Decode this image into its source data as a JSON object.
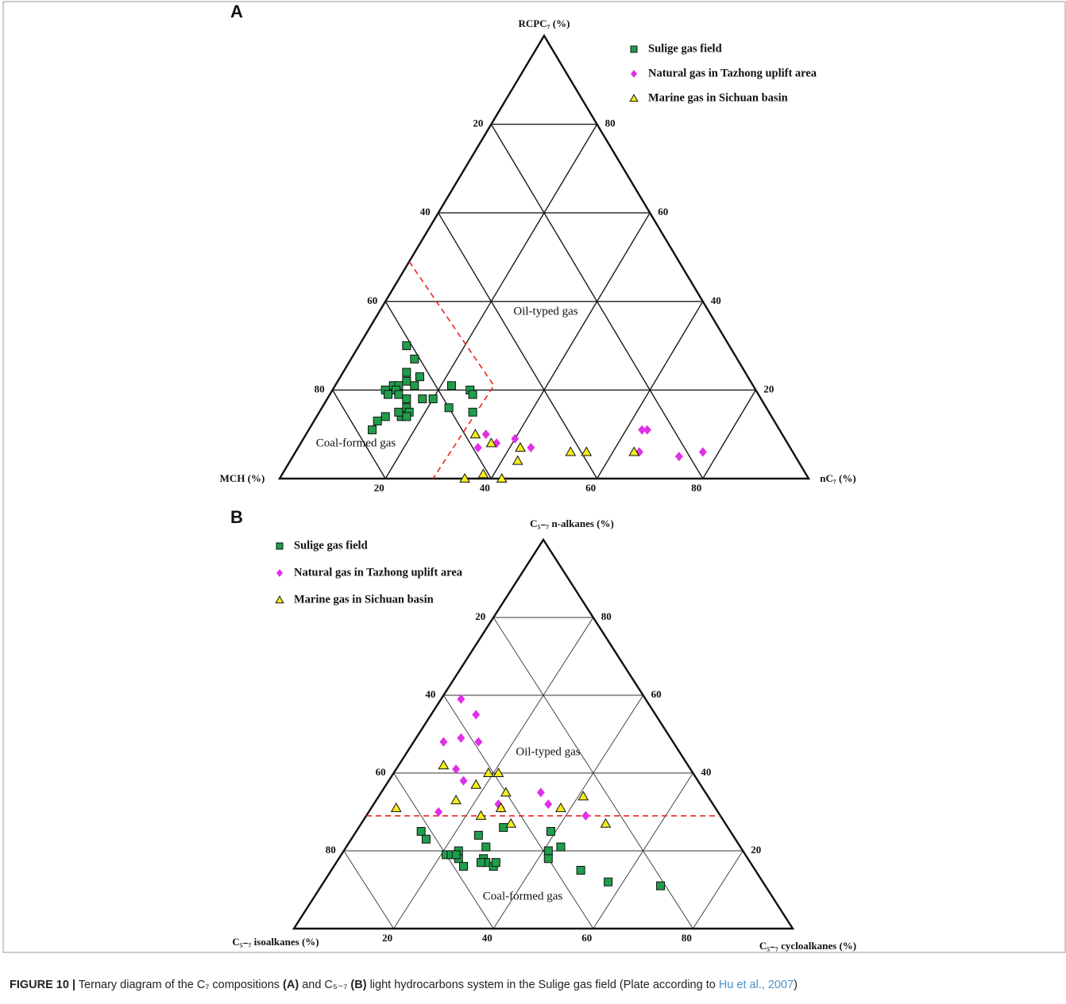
{
  "chart_data": [
    {
      "type": "ternary",
      "panel": "A",
      "lim": [
        0,
        100
      ],
      "components": [
        {
          "name": "MCH (%)",
          "ticks": [
            20,
            40,
            60,
            80
          ]
        },
        {
          "name": "RCPC₇ (%)",
          "ticks": [
            20,
            40,
            60,
            80
          ]
        },
        {
          "name": "nC₇ (%)",
          "ticks": [
            20,
            40,
            60,
            80
          ]
        }
      ],
      "series": [
        {
          "name": "Sulige  gas field",
          "color": "#1f9e4b",
          "marker": "square",
          "values": [
            [
              61,
              30,
              9
            ],
            [
              61,
              27,
              12
            ],
            [
              64,
              24,
              12
            ],
            [
              62,
              23,
              15
            ],
            [
              68,
              21,
              11
            ],
            [
              65,
              22,
              13
            ],
            [
              64,
              21,
              15
            ],
            [
              67,
              21,
              12
            ],
            [
              70,
              20,
              10
            ],
            [
              68,
              20,
              12
            ],
            [
              70,
              19,
              11
            ],
            [
              68,
              19,
              13
            ],
            [
              67,
              18,
              15
            ],
            [
              64,
              18,
              18
            ],
            [
              62,
              18,
              20
            ],
            [
              57,
              21,
              22
            ],
            [
              54,
              20,
              26
            ],
            [
              54,
              19,
              27
            ],
            [
              60,
              16,
              24
            ],
            [
              56,
              15,
              29
            ],
            [
              68,
              16,
              16
            ],
            [
              68,
              15,
              17
            ],
            [
              70,
              14,
              16
            ],
            [
              69,
              14,
              17
            ],
            [
              73,
              14,
              13
            ],
            [
              75,
              13,
              12
            ],
            [
              77,
              11,
              12
            ],
            [
              70,
              15,
              15
            ]
          ]
        },
        {
          "name": "Natural gas in Tazhong  uplift area",
          "color": "#e030e8",
          "marker": "diamond",
          "values": [
            [
              56,
              10,
              34
            ],
            [
              59,
              7,
              34
            ],
            [
              55,
              8,
              37
            ],
            [
              51,
              9,
              40
            ],
            [
              49,
              7,
              44
            ],
            [
              26,
              11,
              63
            ],
            [
              25,
              11,
              64
            ],
            [
              29,
              6,
              65
            ],
            [
              22,
              5,
              73
            ],
            [
              17,
              6,
              77
            ]
          ]
        },
        {
          "name": "Marine gas in Sichuan basin",
          "color": "#f2ee1c",
          "marker": "triangle",
          "values": [
            [
              58,
              10,
              32
            ],
            [
              56,
              8,
              36
            ],
            [
              51,
              7,
              42
            ],
            [
              53,
              4,
              43
            ],
            [
              42,
              6,
              52
            ],
            [
              39,
              6,
              55
            ],
            [
              30,
              6,
              64
            ],
            [
              65,
              0,
              35
            ],
            [
              61,
              1,
              38
            ],
            [
              58,
              0,
              42
            ]
          ]
        }
      ],
      "boundary": {
        "color": "#ee2222",
        "points": [
          [
            51,
            49,
            0
          ],
          [
            49,
            21,
            30
          ],
          [
            71,
            0,
            29
          ]
        ]
      },
      "annotations": [
        {
          "text": "Oil-typed gas",
          "color": "#e8221c"
        },
        {
          "text": "Coal-formed gas",
          "color": "#2b2bd6"
        }
      ]
    },
    {
      "type": "ternary",
      "panel": "B",
      "lim": [
        0,
        100
      ],
      "components": [
        {
          "name": "C₅₋₇ isoalkanes (%)",
          "ticks": [
            20,
            40,
            60,
            80
          ]
        },
        {
          "name": "C₅₋₇ n-alkanes (%)",
          "ticks": [
            20,
            40,
            60,
            80
          ]
        },
        {
          "name": "C₅₋₇  cycloalkanes (%)",
          "ticks": [
            20,
            40,
            60,
            80
          ]
        }
      ],
      "series": [
        {
          "name": "Sulige  gas field",
          "color": "#1f9e4b",
          "marker": "square",
          "values": [
            [
              62,
              25,
              13
            ],
            [
              62,
              23,
              15
            ],
            [
              60,
              19,
              21
            ],
            [
              59,
              19,
              22
            ],
            [
              57,
              20,
              23
            ],
            [
              58,
              18,
              24
            ],
            [
              58,
              16,
              26
            ],
            [
              51,
              24,
              25
            ],
            [
              51,
              21,
              28
            ],
            [
              53,
              18,
              29
            ],
            [
              53,
              17,
              30
            ],
            [
              54,
              17,
              29
            ],
            [
              52,
              16,
              32
            ],
            [
              51,
              17,
              32
            ],
            [
              45,
              26,
              29
            ],
            [
              36,
              25,
              39
            ],
            [
              39,
              20,
              41
            ],
            [
              40,
              18,
              42
            ],
            [
              36,
              21,
              43
            ],
            [
              35,
              15,
              50
            ],
            [
              31,
              12,
              57
            ],
            [
              21,
              11,
              68
            ],
            [
              58,
              19,
              23
            ]
          ]
        },
        {
          "name": "Natural gas in Tazhong  uplift area",
          "color": "#e030e8",
          "marker": "diamond",
          "values": [
            [
              37,
              59,
              4
            ],
            [
              36,
              55,
              9
            ],
            [
              42,
              49,
              9
            ],
            [
              39,
              48,
              13
            ],
            [
              46,
              48,
              6
            ],
            [
              47,
              41,
              12
            ],
            [
              47,
              38,
              15
            ],
            [
              56,
              30,
              14
            ],
            [
              43,
              32,
              25
            ],
            [
              43,
              31,
              26
            ],
            [
              33,
              35,
              32
            ],
            [
              33,
              32,
              35
            ],
            [
              27,
              29,
              44
            ]
          ]
        },
        {
          "name": "Marine gas in Sichuan basin",
          "color": "#f2ee1c",
          "marker": "triangle",
          "values": [
            [
              49,
              42,
              9
            ],
            [
              41,
              40,
              19
            ],
            [
              39,
              40,
              21
            ],
            [
              45,
              37,
              18
            ],
            [
              40,
              35,
              25
            ],
            [
              43,
              31,
              26
            ],
            [
              51,
              33,
              16
            ],
            [
              48,
              29,
              23
            ],
            [
              43,
              27,
              30
            ],
            [
              31,
              31,
              38
            ],
            [
              25,
              34,
              41
            ],
            [
              24,
              27,
              49
            ],
            [
              64,
              31,
              5
            ]
          ]
        }
      ],
      "boundary": {
        "color": "#ee2222",
        "points": [
          [
            71,
            29,
            0
          ],
          [
            0,
            29,
            71
          ]
        ]
      },
      "annotations": [
        {
          "text": "Oil-typed gas",
          "color": "#e8221c"
        },
        {
          "text": "Coal-formed gas",
          "color": "#2b2bd6"
        }
      ]
    }
  ],
  "caption": [
    "FIGURE 10 |",
    " Ternary diagram of the C₇ compositions ",
    "(A)",
    " and C₅₋₇ ",
    "(B)",
    " light hydrocarbons system in the Sulige gas field (Plate according to ",
    "Hu et al., 2007",
    ")"
  ]
}
